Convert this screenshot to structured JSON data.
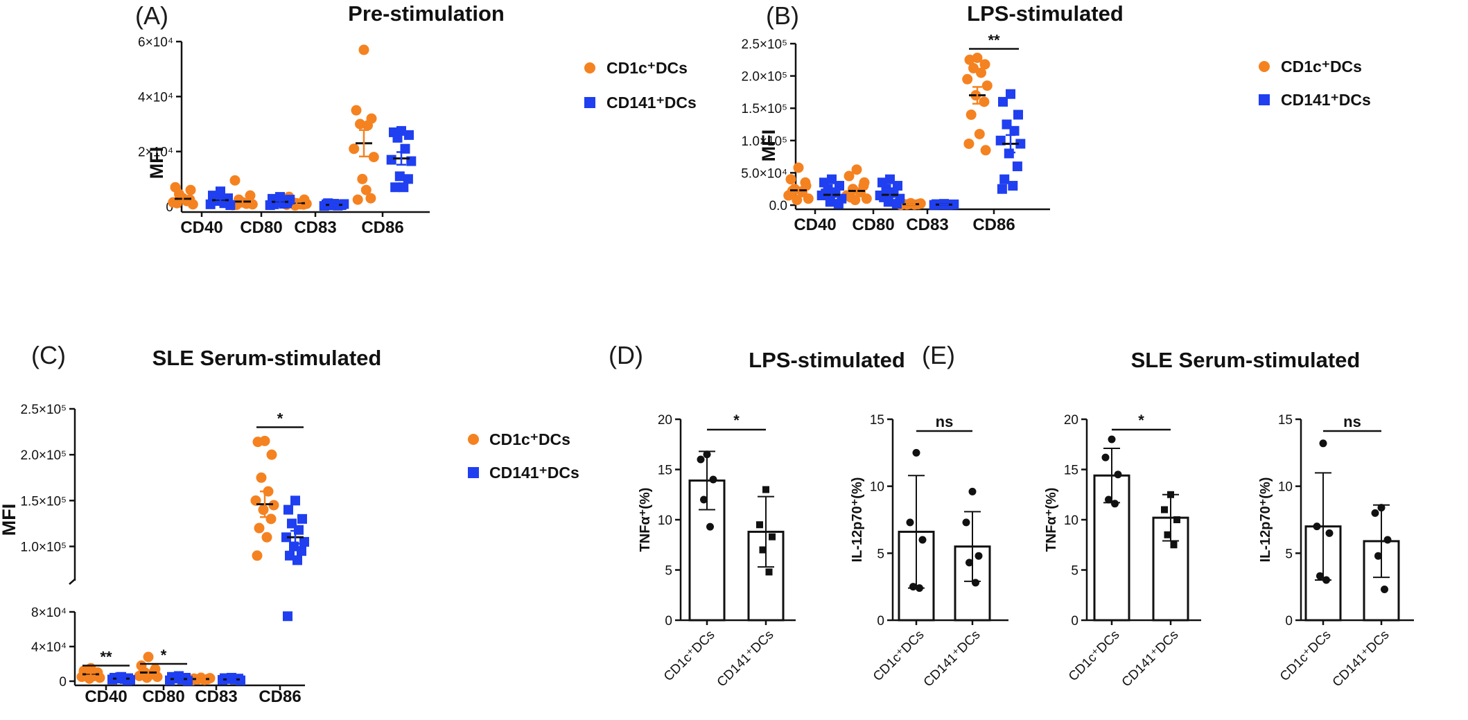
{
  "colors": {
    "cd1c": "#f58220",
    "cd141": "#1f3ff0",
    "ink": "#111111"
  },
  "chart_data": [
    {
      "id": "A",
      "type": "scatter",
      "panel_label": "(A)",
      "title": "Pre-stimulation",
      "ylabel": "MFI",
      "categories": [
        "CD40",
        "CD80",
        "CD83",
        "CD86"
      ],
      "ylim": [
        0,
        60000
      ],
      "yticks": [
        {
          "value": 0,
          "label": "0"
        },
        {
          "value": 20000,
          "label": "2×10⁴"
        },
        {
          "value": 40000,
          "label": "4×10⁴"
        },
        {
          "value": 60000,
          "label": "6×10⁴"
        }
      ],
      "legend": [
        "CD1c⁺DCs",
        "CD141⁺DCs"
      ],
      "series": [
        {
          "name": "CD1c⁺DCs",
          "marker": "circle",
          "points": [
            [
              3000,
              7000,
              6000,
              4500,
              2000,
              1500,
              800,
              3000,
              2500,
              1200
            ],
            [
              1500,
              9500,
              4000,
              2500,
              1000,
              500,
              800,
              1500,
              1200,
              600
            ],
            [
              1200,
              3500,
              2500,
              1500,
              800,
              600,
              1000,
              400,
              700,
              1800
            ],
            [
              57000,
              35000,
              32000,
              30000,
              29500,
              21000,
              18000,
              10000,
              3000,
              2500,
              6000
            ]
          ],
          "means": [
            2800,
            1800,
            1200,
            23000
          ],
          "sem": [
            700,
            900,
            500,
            4800
          ]
        },
        {
          "name": "CD141⁺DCs",
          "marker": "square",
          "points": [
            [
              5500,
              4000,
              3000,
              2000,
              1200,
              800,
              500,
              2500,
              1500,
              2800
            ],
            [
              3500,
              2800,
              2000,
              1500,
              1000,
              500,
              2500,
              1800,
              1200,
              800
            ],
            [
              1000,
              800,
              600,
              400,
              300,
              200,
              900,
              700,
              500,
              1200
            ],
            [
              27500,
              27000,
              26000,
              25000,
              21000,
              17000,
              16500,
              11000,
              10000,
              7000,
              7000
            ]
          ],
          "means": [
            2300,
            1700,
            600,
            17500
          ],
          "sem": [
            500,
            400,
            150,
            2300
          ]
        }
      ],
      "significance": []
    },
    {
      "id": "B",
      "type": "scatter",
      "panel_label": "(B)",
      "title": "LPS-stimulated",
      "ylabel": "MFI",
      "categories": [
        "CD40",
        "CD80",
        "CD83",
        "CD86"
      ],
      "ylim": [
        0,
        250000
      ],
      "yticks": [
        {
          "value": 0,
          "label": "0.0"
        },
        {
          "value": 50000,
          "label": "5.0×10⁴"
        },
        {
          "value": 100000,
          "label": "1.0×10⁵"
        },
        {
          "value": 150000,
          "label": "1.5×10⁵"
        },
        {
          "value": 200000,
          "label": "2.0×10⁵"
        },
        {
          "value": 250000,
          "label": "2.5×10⁵"
        }
      ],
      "legend": [
        "CD1c⁺DCs",
        "CD141⁺DCs"
      ],
      "series": [
        {
          "name": "CD1c⁺DCs",
          "marker": "circle",
          "points": [
            [
              58000,
              40000,
              30000,
              25000,
              20000,
              15000,
              10000,
              8000,
              35000,
              22000
            ],
            [
              55000,
              45000,
              35000,
              25000,
              20000,
              15000,
              10000,
              8000,
              30000,
              12000
            ],
            [
              3000,
              2000,
              1500,
              1000,
              800,
              500,
              2500,
              1800
            ],
            [
              228000,
              225000,
              218000,
              212000,
              205000,
              195000,
              185000,
              170000,
              160000,
              140000,
              110000,
              95000,
              85000
            ]
          ],
          "means": [
            23000,
            22000,
            1500,
            170000
          ],
          "sem": [
            4500,
            4000,
            300,
            13000
          ]
        },
        {
          "name": "CD141⁺DCs",
          "marker": "square",
          "points": [
            [
              40000,
              35000,
              30000,
              25000,
              20000,
              15000,
              10000,
              5000,
              2000,
              18000
            ],
            [
              40000,
              35000,
              30000,
              25000,
              20000,
              15000,
              10000,
              5000,
              2000,
              12000
            ],
            [
              2000,
              1500,
              1000,
              800,
              500,
              300,
              1200,
              600
            ],
            [
              172000,
              160000,
              140000,
              125000,
              115000,
              100000,
              95000,
              80000,
              60000,
              40000,
              30000,
              25000
            ]
          ],
          "means": [
            16000,
            16000,
            800,
            95000
          ],
          "sem": [
            3500,
            3500,
            200,
            13500
          ]
        }
      ],
      "significance": [
        {
          "from": 3,
          "to": 3,
          "label": "**",
          "y": 242000
        }
      ]
    },
    {
      "id": "C",
      "type": "scatter",
      "panel_label": "(C)",
      "title": "SLE Serum-stimulated",
      "ylabel": "MFI",
      "categories": [
        "CD40",
        "CD80",
        "CD83",
        "CD86"
      ],
      "ylim_lower": [
        0,
        80000
      ],
      "ylim_upper": [
        80000,
        250000
      ],
      "yticks_lower": [
        {
          "value": 0,
          "label": "0"
        },
        {
          "value": 40000,
          "label": "4×10⁴"
        },
        {
          "value": 80000,
          "label": "8×10⁴"
        }
      ],
      "yticks_upper": [
        {
          "value": 100000,
          "label": "1.0×10⁵"
        },
        {
          "value": 150000,
          "label": "1.5×10⁵"
        },
        {
          "value": 200000,
          "label": "2.0×10⁵"
        },
        {
          "value": 250000,
          "label": "2.5×10⁵"
        }
      ],
      "legend": [
        "CD1c⁺DCs",
        "CD141⁺DCs"
      ],
      "series": [
        {
          "name": "CD1c⁺DCs",
          "marker": "circle",
          "points": [
            [
              15000,
              12000,
              10000,
              8000,
              6000,
              5000,
              4000,
              3000,
              9000,
              7000
            ],
            [
              28000,
              18000,
              14000,
              10000,
              8000,
              6000,
              5000,
              4000,
              12000,
              9000
            ],
            [
              4000,
              3000,
              2500,
              2000,
              1500,
              1000,
              3500
            ],
            [
              215000,
              214000,
              200000,
              175000,
              160000,
              150000,
              145000,
              140000,
              130000,
              120000,
              110000,
              90000
            ]
          ],
          "means": [
            8000,
            10000,
            2500,
            146000
          ],
          "sem": [
            1500,
            2500,
            400,
            14000
          ]
        },
        {
          "name": "CD141⁺DCs",
          "marker": "square",
          "points": [
            [
              5000,
              4000,
              3500,
              3000,
              2500,
              2000,
              1500,
              4500,
              1000
            ],
            [
              6000,
              5000,
              4000,
              3000,
              2000,
              1000,
              500,
              3500,
              2500
            ],
            [
              4000,
              3500,
              3000,
              2500,
              2000,
              1500,
              1000
            ],
            [
              150000,
              140000,
              130000,
              125000,
              118000,
              110000,
              105000,
              100000,
              95000,
              90000,
              85000,
              75000
            ]
          ],
          "means": [
            3000,
            2500,
            2000,
            110000
          ],
          "sem": [
            500,
            600,
            400,
            7000
          ]
        }
      ],
      "significance": [
        {
          "from": 0,
          "to": 0,
          "label": "**",
          "y": 18000
        },
        {
          "from": 1,
          "to": 1,
          "label": "*",
          "y": 20000
        },
        {
          "from": 3,
          "to": 3,
          "label": "*",
          "y": 230000
        }
      ]
    },
    {
      "id": "D",
      "type": "bar",
      "panel_label": "(D)",
      "title": "LPS-stimulated",
      "subplots": [
        {
          "ylabel": "TNFα⁺(%)",
          "ylim": [
            0,
            20
          ],
          "yticks": [
            0,
            5,
            10,
            15,
            20
          ],
          "categories": [
            "CD1c⁺DCs",
            "CD141⁺DCs"
          ],
          "values": [
            13.9,
            8.8
          ],
          "sd": [
            2.9,
            3.5
          ],
          "points": [
            [
              16.5,
              16.0,
              14.0,
              12.0,
              9.3
            ],
            [
              13.0,
              9.5,
              8.3,
              7.0,
              4.8
            ]
          ],
          "markers": [
            "circle",
            "square"
          ],
          "significance": {
            "label": "*"
          }
        },
        {
          "ylabel": "IL-12p70⁺(%)",
          "ylim": [
            0,
            15
          ],
          "yticks": [
            0,
            5,
            10,
            15
          ],
          "categories": [
            "CD1c⁺DCs",
            "CD141⁺DCs"
          ],
          "values": [
            6.6,
            5.5
          ],
          "sd": [
            4.2,
            2.6
          ],
          "points": [
            [
              12.5,
              7.3,
              6.0,
              2.5,
              2.4
            ],
            [
              9.6,
              7.3,
              4.8,
              4.3,
              2.8
            ]
          ],
          "markers": [
            "circle",
            "circle"
          ],
          "significance": {
            "label": "ns"
          }
        }
      ]
    },
    {
      "id": "E",
      "type": "bar",
      "panel_label": "(E)",
      "title": "SLE Serum-stimulated",
      "subplots": [
        {
          "ylabel": "TNFα⁺(%)",
          "ylim": [
            0,
            20
          ],
          "yticks": [
            0,
            5,
            10,
            15,
            20
          ],
          "categories": [
            "CD1c⁺DCs",
            "CD141⁺DCs"
          ],
          "values": [
            14.4,
            10.2
          ],
          "sd": [
            2.7,
            2.3
          ],
          "points": [
            [
              18.0,
              16.2,
              14.5,
              12.0,
              11.6
            ],
            [
              12.5,
              11.0,
              10.0,
              8.5,
              7.5
            ]
          ],
          "markers": [
            "circle",
            "square"
          ],
          "significance": {
            "label": "*"
          }
        },
        {
          "ylabel": "IL-12p70⁺(%)",
          "ylim": [
            0,
            15
          ],
          "yticks": [
            0,
            5,
            10,
            15
          ],
          "categories": [
            "CD1c⁺DCs",
            "CD141⁺DCs"
          ],
          "values": [
            7.0,
            5.9
          ],
          "sd": [
            4.0,
            2.7
          ],
          "points": [
            [
              13.2,
              7.0,
              6.5,
              3.3,
              3.0
            ],
            [
              8.4,
              8.0,
              6.0,
              4.8,
              2.3
            ]
          ],
          "markers": [
            "circle",
            "circle"
          ],
          "significance": {
            "label": "ns"
          }
        }
      ]
    }
  ]
}
